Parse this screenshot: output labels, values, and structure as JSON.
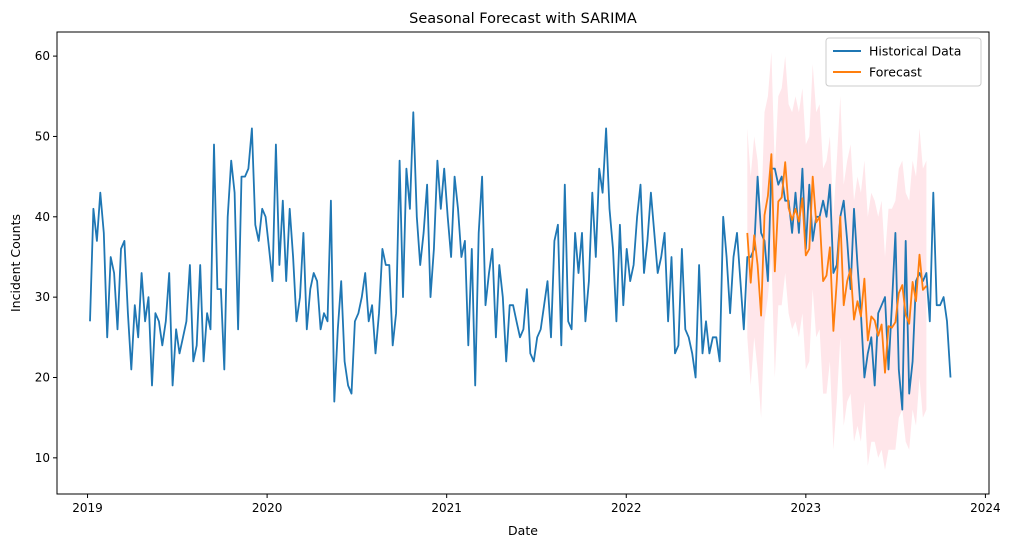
{
  "chart_data": {
    "type": "line",
    "title": "Seasonal Forecast with SARIMA",
    "xlabel": "Date",
    "ylabel": "Incident Counts",
    "xlim": [
      2018.83,
      2024.02
    ],
    "ylim": [
      5.5,
      63
    ],
    "x_ticks": [
      2019,
      2020,
      2021,
      2022,
      2023,
      2024
    ],
    "x_tick_labels": [
      "2019",
      "2020",
      "2021",
      "2022",
      "2023",
      "2024"
    ],
    "y_ticks": [
      10,
      20,
      30,
      40,
      50,
      60
    ],
    "y_tick_labels": [
      "10",
      "20",
      "30",
      "40",
      "50",
      "60"
    ],
    "grid": false,
    "legend_position": "top-right",
    "colors": {
      "historical": "#1f77b4",
      "forecast": "#ff7f0e",
      "band": "#ffc0cb"
    },
    "series": [
      {
        "name": "Historical Data",
        "start_date": "2019-01-06",
        "frequency": "weekly",
        "values": [
          27,
          41,
          37,
          43,
          38,
          25,
          35,
          33,
          26,
          36,
          37,
          28,
          21,
          29,
          25,
          33,
          27,
          30,
          19,
          28,
          27,
          24,
          27,
          33,
          19,
          26,
          23,
          25,
          27,
          34,
          22,
          24,
          34,
          22,
          28,
          26,
          49,
          31,
          31,
          21,
          40,
          47,
          43,
          26,
          45,
          45,
          46,
          51,
          39,
          37,
          41,
          40,
          36,
          32,
          49,
          34,
          42,
          32,
          41,
          35,
          27,
          30,
          38,
          26,
          31,
          33,
          32,
          26,
          28,
          27,
          42,
          17,
          26,
          32,
          22,
          19,
          18,
          27,
          28,
          30,
          33,
          27,
          29,
          23,
          28,
          36,
          34,
          34,
          24,
          28,
          47,
          30,
          46,
          41,
          53,
          40,
          34,
          38,
          44,
          30,
          36,
          47,
          41,
          46,
          40,
          35,
          45,
          41,
          35,
          37,
          24,
          36,
          19,
          38,
          45,
          29,
          33,
          36,
          25,
          34,
          30,
          22,
          29,
          29,
          27,
          25,
          26,
          31,
          23,
          22,
          25,
          26,
          29,
          32,
          25,
          37,
          39,
          24,
          44,
          27,
          26,
          38,
          33,
          38,
          27,
          32,
          43,
          35,
          46,
          43,
          51,
          41,
          36,
          27,
          39,
          29,
          36,
          32,
          34,
          40,
          44,
          33,
          37,
          43,
          38,
          33,
          35,
          38,
          27,
          35,
          23,
          24,
          36,
          26,
          25,
          23,
          20,
          34,
          23,
          27,
          23,
          25,
          25,
          22,
          40,
          35,
          28,
          35,
          38,
          32,
          26,
          35,
          35,
          36,
          45,
          38,
          37,
          32,
          46,
          46,
          44,
          45,
          42,
          42,
          38,
          43,
          38,
          46,
          36,
          44,
          37,
          40,
          40,
          42,
          40,
          44,
          33,
          34,
          40,
          42,
          37,
          31,
          41,
          34,
          28,
          20,
          23,
          25,
          19,
          28,
          29,
          30,
          21,
          29,
          38,
          21,
          16,
          37,
          18,
          22,
          32,
          33,
          32,
          33,
          27,
          43,
          29,
          29,
          30,
          27,
          20
        ]
      },
      {
        "name": "Forecast",
        "start_date": "2022-09-04",
        "frequency": "weekly",
        "values": [
          38.0,
          31.8,
          37.7,
          34.0,
          27.7,
          40.2,
          42.6,
          47.8,
          33.2,
          41.9,
          42.4,
          46.8,
          41.1,
          39.6,
          41.0,
          39.4,
          42.3,
          35.2,
          36.0,
          45.0,
          39.3,
          40.0,
          32.0,
          32.7,
          36.2,
          25.8,
          32.0,
          40.0,
          29.0,
          32.0,
          33.5,
          27.2,
          29.5,
          27.6,
          32.3,
          24.6,
          27.6,
          27.1,
          25.2,
          26.6,
          20.6,
          26.4,
          26.2,
          26.9,
          30.5,
          31.5,
          27.8,
          26.7,
          31.9,
          29.5,
          35.3,
          30.9,
          31.4
        ],
        "lower": [
          25,
          19,
          25,
          21,
          15,
          27,
          30,
          35,
          20,
          29,
          29,
          33,
          28,
          26,
          27,
          25,
          28,
          21,
          22,
          31,
          25,
          26,
          18,
          18,
          22,
          11,
          17,
          25,
          14,
          17,
          18,
          12,
          14,
          12,
          17,
          9,
          12,
          12,
          10,
          11,
          8.5,
          11,
          11,
          11,
          15,
          16,
          12,
          11,
          16,
          14,
          20,
          15,
          16
        ],
        "upper": [
          51,
          45,
          50,
          47,
          40,
          53,
          55,
          60.5,
          46,
          55,
          56,
          60,
          54,
          53,
          55,
          53,
          56,
          49,
          50,
          59,
          53,
          54,
          46,
          47,
          50,
          40,
          47,
          55,
          44,
          47,
          49,
          42,
          45,
          43,
          47,
          40,
          43,
          42,
          40,
          42,
          35,
          41,
          41,
          42,
          46,
          47,
          43,
          42,
          47,
          45,
          51,
          46,
          47
        ]
      }
    ]
  }
}
